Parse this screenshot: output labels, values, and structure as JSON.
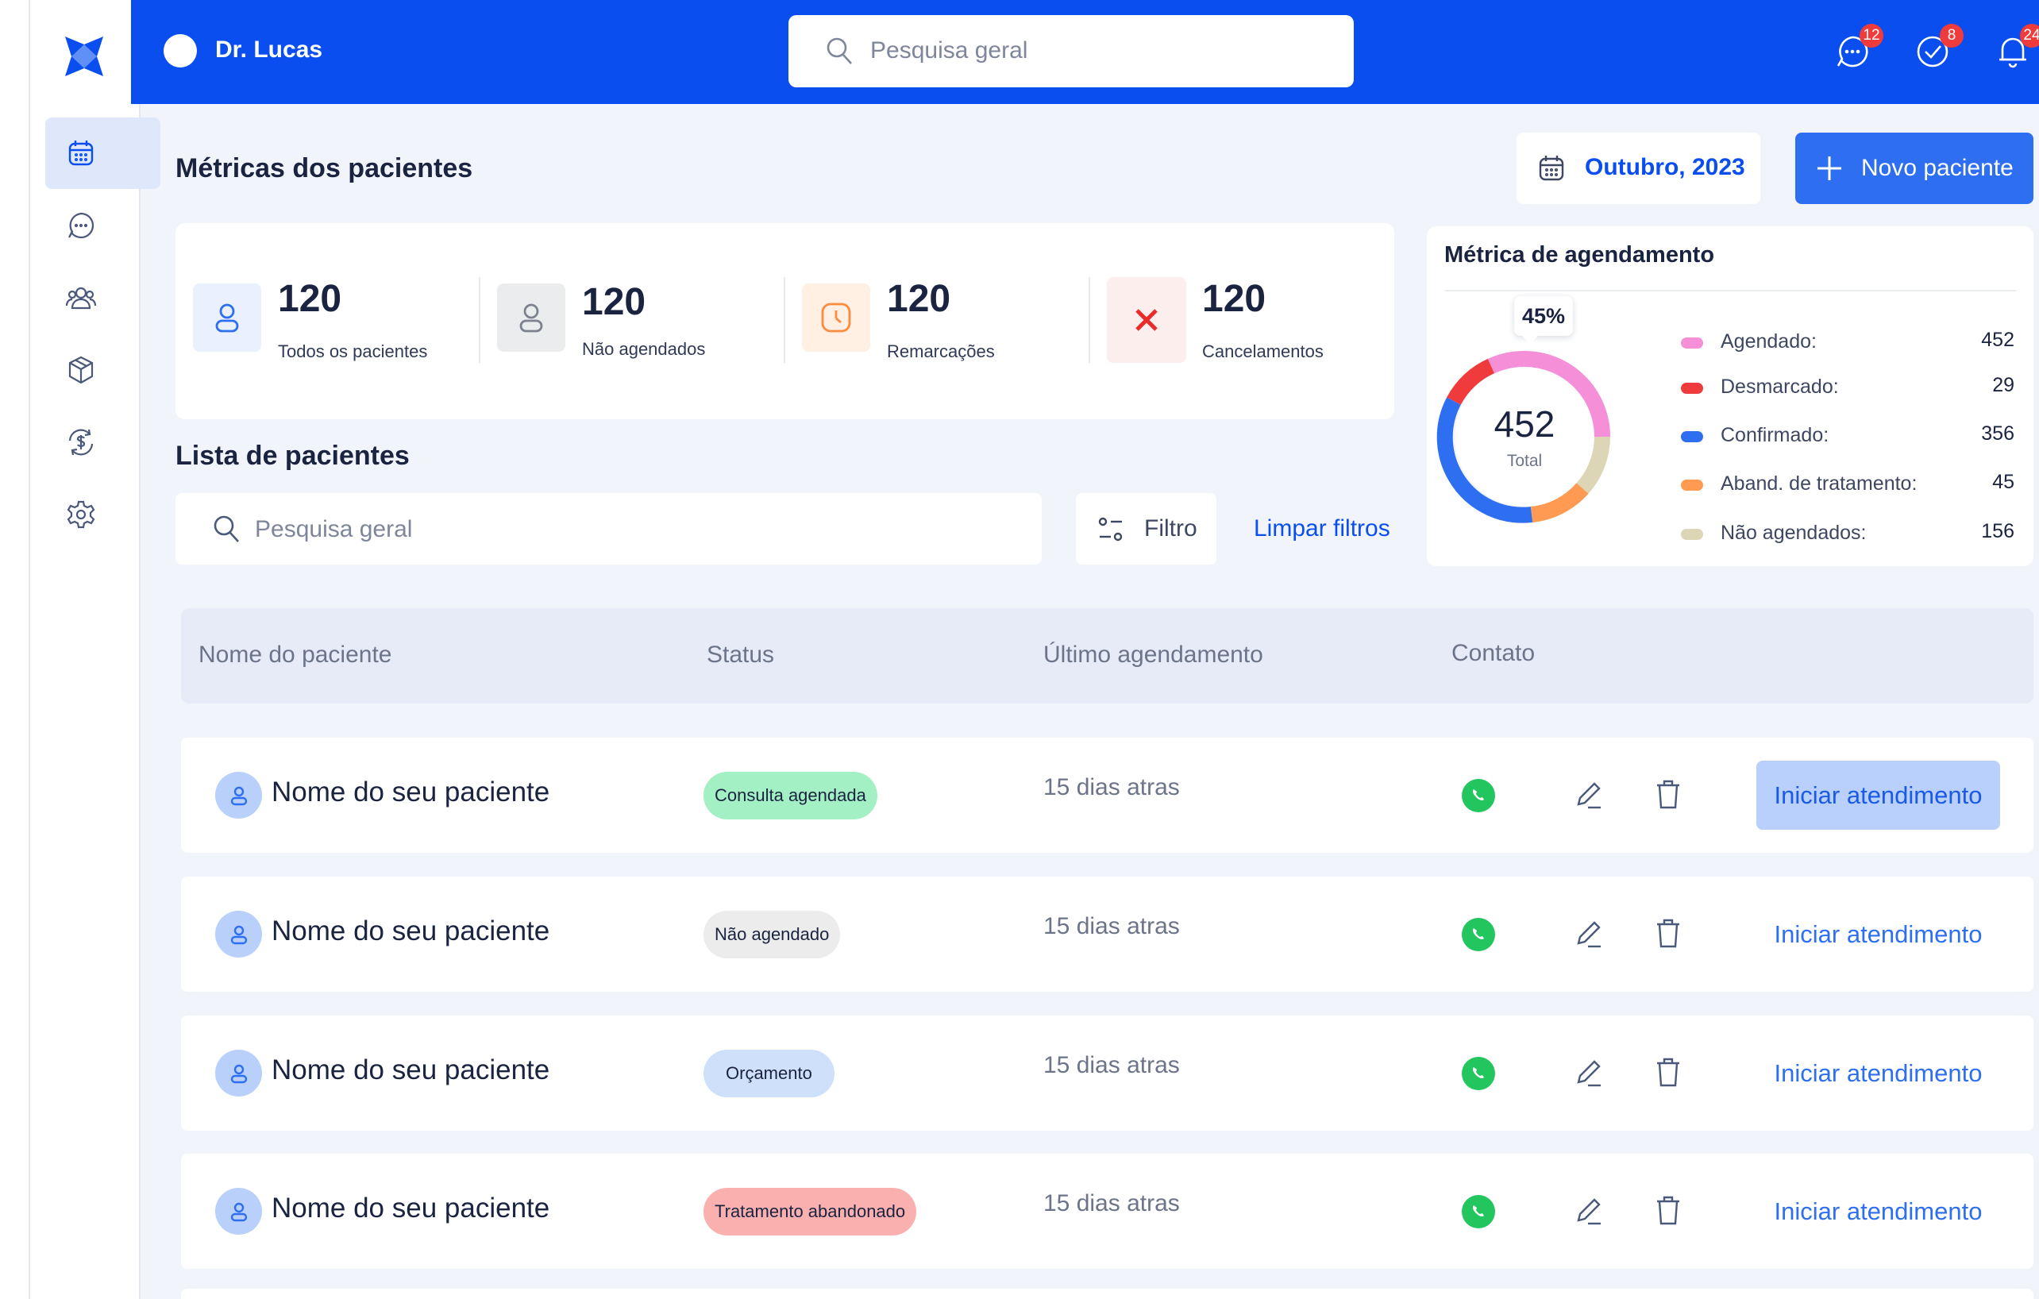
{
  "header": {
    "user_name": "Dr. Lucas",
    "search_placeholder": "Pesquisa geral",
    "notifications": [
      {
        "icon": "chat-icon",
        "count": "12"
      },
      {
        "icon": "check-circle-icon",
        "count": "8"
      },
      {
        "icon": "bell-icon",
        "count": "24"
      }
    ]
  },
  "sidebar": {
    "items": [
      {
        "icon": "calendar-icon",
        "active": true
      },
      {
        "icon": "chat-icon",
        "active": false
      },
      {
        "icon": "users-icon",
        "active": false
      },
      {
        "icon": "box-icon",
        "active": false
      },
      {
        "icon": "dollar-cycle-icon",
        "active": false
      },
      {
        "icon": "gear-icon",
        "active": false
      }
    ]
  },
  "metrics": {
    "title": "Métricas dos pacientes",
    "date_label": "Outubro, 2023",
    "new_patient_label": "Novo paciente",
    "cards": [
      {
        "value": "120",
        "label": "Todos os pacientes",
        "icon": "user-icon"
      },
      {
        "value": "120",
        "label": "Não agendados",
        "icon": "user-icon"
      },
      {
        "value": "120",
        "label": "Remarcações",
        "icon": "clock-icon"
      },
      {
        "value": "120",
        "label": "Cancelamentos",
        "icon": "close-icon"
      }
    ]
  },
  "chart": {
    "title": "Métrica de agendamento",
    "tooltip": "45%",
    "total_value": "452",
    "total_label": "Total",
    "legend": [
      {
        "label": "Agendado:",
        "value": "452",
        "color": "#f48fd8"
      },
      {
        "label": "Desmarcado:",
        "value": "29",
        "color": "#ef3b3b"
      },
      {
        "label": "Confirmado:",
        "value": "356",
        "color": "#2e6ff2"
      },
      {
        "label": "Aband. de tratamento:",
        "value": "45",
        "color": "#ff9a52"
      },
      {
        "label": "Não agendados:",
        "value": "156",
        "color": "#ddd6b6"
      }
    ]
  },
  "list": {
    "title": "Lista de pacientes",
    "search_placeholder": "Pesquisa geral",
    "filter_label": "Filtro",
    "clear_label": "Limpar filtros",
    "columns": [
      "Nome do paciente",
      "Status",
      "Último agendamento",
      "Contato"
    ],
    "rows": [
      {
        "name": "Nome do seu paciente",
        "status": "Consulta agendada",
        "status_color": "#a3f0c4",
        "last": "15 dias atras",
        "action": "Iniciar atendimento"
      },
      {
        "name": "Nome do seu paciente",
        "status": "Não agendado",
        "status_color": "#ececec",
        "last": "15 dias atras",
        "action": "Iniciar atendimento"
      },
      {
        "name": "Nome do seu paciente",
        "status": "Orçamento",
        "status_color": "#cfe0fb",
        "last": "15 dias atras",
        "action": "Iniciar atendimento"
      },
      {
        "name": "Nome do seu paciente",
        "status": "Tratamento abandonado",
        "status_color": "#fbb0b0",
        "last": "15 dias atras",
        "action": "Iniciar atendimento"
      }
    ]
  }
}
